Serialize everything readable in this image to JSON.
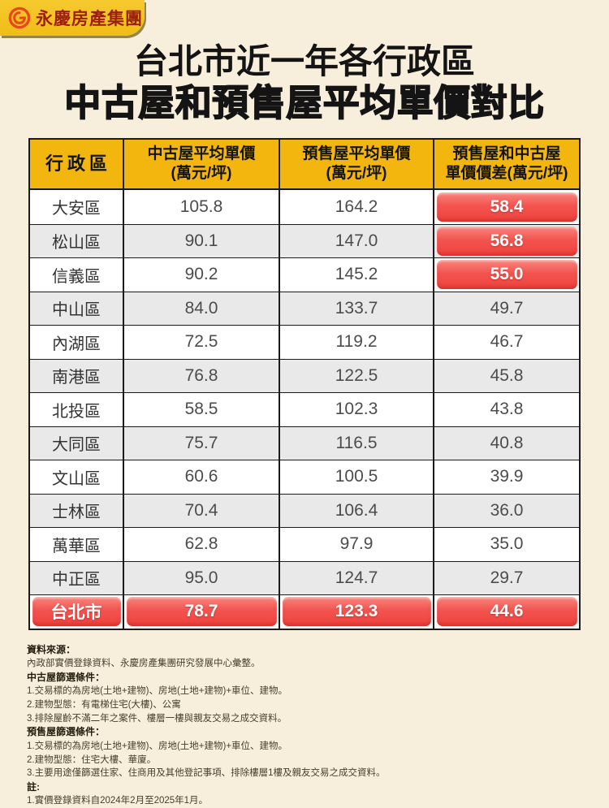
{
  "brand": {
    "name": "永慶房產集團"
  },
  "title": {
    "line1": "台北市近一年各行政區",
    "line2": "中古屋和預售屋平均單價對比"
  },
  "chart_data": {
    "type": "table",
    "title": "台北市近一年各行政區中古屋和預售屋平均單價對比",
    "columns": [
      {
        "lines": [
          "行政區"
        ]
      },
      {
        "lines": [
          "中古屋平均單價",
          "(萬元/坪)"
        ]
      },
      {
        "lines": [
          "預售屋平均單價",
          "(萬元/坪)"
        ]
      },
      {
        "lines": [
          "預售屋和中古屋",
          "單價價差(萬元/坪)"
        ]
      }
    ],
    "rows": [
      {
        "district": "大安區",
        "old_avg": 105.8,
        "presale_avg": 164.2,
        "diff": 58.4
      },
      {
        "district": "松山區",
        "old_avg": 90.1,
        "presale_avg": 147.0,
        "diff": 56.8
      },
      {
        "district": "信義區",
        "old_avg": 90.2,
        "presale_avg": 145.2,
        "diff": 55.0
      },
      {
        "district": "中山區",
        "old_avg": 84.0,
        "presale_avg": 133.7,
        "diff": 49.7
      },
      {
        "district": "內湖區",
        "old_avg": 72.5,
        "presale_avg": 119.2,
        "diff": 46.7
      },
      {
        "district": "南港區",
        "old_avg": 76.8,
        "presale_avg": 122.5,
        "diff": 45.8
      },
      {
        "district": "北投區",
        "old_avg": 58.5,
        "presale_avg": 102.3,
        "diff": 43.8
      },
      {
        "district": "大同區",
        "old_avg": 75.7,
        "presale_avg": 116.5,
        "diff": 40.8
      },
      {
        "district": "文山區",
        "old_avg": 60.6,
        "presale_avg": 100.5,
        "diff": 39.9
      },
      {
        "district": "士林區",
        "old_avg": 70.4,
        "presale_avg": 106.4,
        "diff": 36.0
      },
      {
        "district": "萬華區",
        "old_avg": 62.8,
        "presale_avg": 97.9,
        "diff": 35.0
      },
      {
        "district": "中正區",
        "old_avg": 95.0,
        "presale_avg": 124.7,
        "diff": 29.7
      }
    ],
    "total_row": {
      "district": "台北市",
      "old_avg": 78.7,
      "presale_avg": 123.3,
      "diff": 44.6
    },
    "highlight_diff_rows": [
      0,
      1,
      2
    ]
  },
  "notes": [
    {
      "label": "資料來源：",
      "lines": [
        "內政部實價登錄資料、永慶房產集團研究發展中心彙整。"
      ]
    },
    {
      "label": "中古屋篩選條件：",
      "lines": [
        "1.交易標的為房地(土地+建物)、房地(土地+建物)+車位、建物。",
        "2.建物型態：有電梯住宅(大樓)、公寓",
        "3.排除屋齡不滿二年之案件、樓層一樓與親友交易之成交資料。"
      ]
    },
    {
      "label": "預售屋篩選條件：",
      "lines": [
        "1.交易標的為房地(土地+建物)、房地(土地+建物)+車位、建物。",
        "2.建物型態：住宅大樓、華廈。",
        "3.主要用途僅篩選住家、住商用及其他登記事項、排除樓層1樓及親友交易之成交資料。"
      ]
    },
    {
      "label": "註:",
      "lines": [
        "1.實價登錄資料自2024年2月至2025年1月。"
      ]
    }
  ],
  "colors": {
    "background": "#f7efdc",
    "brand_yellow": "#f2c222",
    "brand_text_red": "#9c1f12",
    "header_yellow": "#f2b60e",
    "highlight_red": "#f3514c",
    "row_alt_gray": "#e9e9e9",
    "table_border": "#1b1b1b"
  }
}
